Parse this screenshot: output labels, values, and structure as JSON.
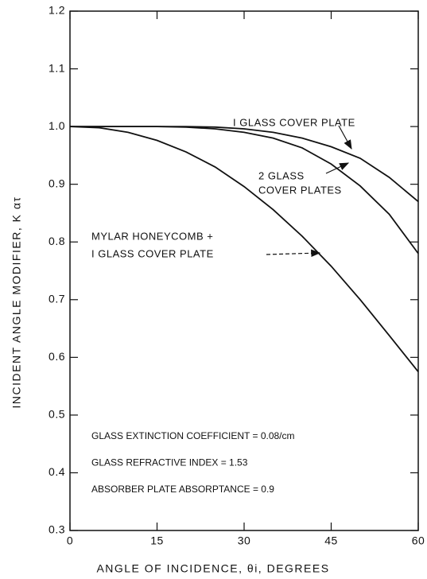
{
  "chart_data": {
    "type": "line",
    "xlabel": "ANGLE OF INCIDENCE, θi, DEGREES",
    "ylabel": "INCIDENT ANGLE MODIFIER, K ατ",
    "x": [
      0,
      5,
      10,
      15,
      20,
      25,
      30,
      35,
      40,
      45,
      50,
      55,
      60
    ],
    "series": [
      {
        "label": [
          "I GLASS COVER PLATE"
        ],
        "color": "#111111",
        "values": [
          1.0,
          1.0,
          1.0,
          1.0,
          1.0,
          0.999,
          0.996,
          0.99,
          0.98,
          0.965,
          0.945,
          0.912,
          0.87
        ]
      },
      {
        "label": [
          "2 GLASS",
          "COVER PLATES"
        ],
        "color": "#111111",
        "values": [
          1.0,
          1.0,
          1.0,
          1.0,
          0.999,
          0.996,
          0.99,
          0.98,
          0.963,
          0.935,
          0.897,
          0.848,
          0.78
        ]
      },
      {
        "label": [
          "MYLAR HONEYCOMB +",
          "I GLASS COVER PLATE"
        ],
        "color": "#111111",
        "values": [
          1.0,
          0.998,
          0.99,
          0.976,
          0.956,
          0.93,
          0.896,
          0.856,
          0.81,
          0.758,
          0.7,
          0.638,
          0.575
        ]
      }
    ],
    "notes": [
      "GLASS EXTINCTION COEFFICIENT = 0.08/cm",
      "GLASS REFRACTIVE INDEX = 1.53",
      "ABSORBER PLATE ABSORPTANCE = 0.9"
    ],
    "xlim": [
      0,
      60
    ],
    "xticks": [
      0,
      15,
      30,
      45,
      60
    ],
    "ylim": [
      0.3,
      1.2
    ],
    "yticks": [
      0.3,
      0.4,
      0.5,
      0.6,
      0.7,
      0.8,
      0.9,
      {
        "value": 1.0,
        "label": "1.0"
      },
      1.1,
      1.2
    ],
    "grid": false
  }
}
